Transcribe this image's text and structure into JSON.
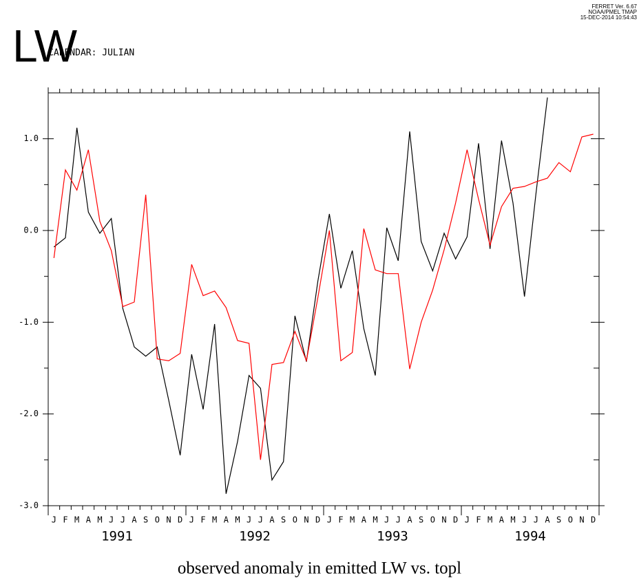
{
  "chart_data": {
    "type": "line",
    "title": "LW",
    "subtitle": "CALENDAR: JULIAN",
    "annotations": [
      "FERRET Ver. 6.67",
      "NOAA/PMEL TMAP",
      "15-DEC-2014 10:54:43"
    ],
    "x_label": "observed anomaly in emitted LW vs. topl",
    "categories": [
      "J",
      "F",
      "M",
      "A",
      "M",
      "J",
      "J",
      "A",
      "S",
      "O",
      "N",
      "D",
      "J",
      "F",
      "M",
      "A",
      "M",
      "J",
      "J",
      "A",
      "S",
      "O",
      "N",
      "D",
      "J",
      "F",
      "M",
      "A",
      "M",
      "J",
      "J",
      "A",
      "S",
      "O",
      "N",
      "D",
      "J",
      "F",
      "M",
      "A",
      "M",
      "J",
      "J",
      "A",
      "S",
      "O",
      "N",
      "D"
    ],
    "years": [
      "1991",
      "1992",
      "1993",
      "1994"
    ],
    "series": [
      {
        "color": "#000000",
        "values": [
          -0.18,
          -0.08,
          1.12,
          0.2,
          -0.03,
          0.13,
          -0.85,
          -1.27,
          -1.37,
          -1.27,
          -1.85,
          -2.45,
          -1.35,
          -1.95,
          -1.02,
          -2.87,
          -2.3,
          -1.58,
          -1.72,
          -2.72,
          -2.52,
          -0.93,
          -1.43,
          -0.55,
          0.18,
          -0.63,
          -0.22,
          -1.07,
          -1.58,
          0.03,
          -0.33,
          1.08,
          -0.12,
          -0.44,
          -0.03,
          -0.31,
          -0.07,
          0.95,
          -0.2,
          0.98,
          0.3,
          -0.72,
          0.4,
          1.45,
          null,
          null,
          null,
          null
        ]
      },
      {
        "color": "#ff0000",
        "values": [
          -0.3,
          0.66,
          0.44,
          0.88,
          0.1,
          -0.22,
          -0.83,
          -0.78,
          0.39,
          -1.4,
          -1.42,
          -1.34,
          -0.37,
          -0.71,
          -0.66,
          -0.84,
          -1.2,
          -1.23,
          -2.5,
          -1.46,
          -1.44,
          -1.1,
          -1.42,
          -0.73,
          0.0,
          -1.42,
          -1.33,
          0.02,
          -0.43,
          -0.47,
          -0.47,
          -1.51,
          -1.0,
          -0.65,
          -0.21,
          0.3,
          0.88,
          0.34,
          -0.16,
          0.26,
          0.46,
          0.48,
          0.53,
          0.57,
          0.74,
          0.64,
          1.02,
          1.05
        ]
      }
    ],
    "ylim": [
      -3,
      1.5
    ],
    "yticks": [
      {
        "value": -3,
        "label": "-3.0"
      },
      {
        "value": -2,
        "label": "-2.0"
      },
      {
        "value": -1,
        "label": "-1.0"
      },
      {
        "value": 0,
        "label": "0.0"
      },
      {
        "value": 1,
        "label": "1.0"
      }
    ],
    "yminor_ticks": [
      -2.5,
      -1.5,
      -0.5,
      0.5
    ]
  }
}
